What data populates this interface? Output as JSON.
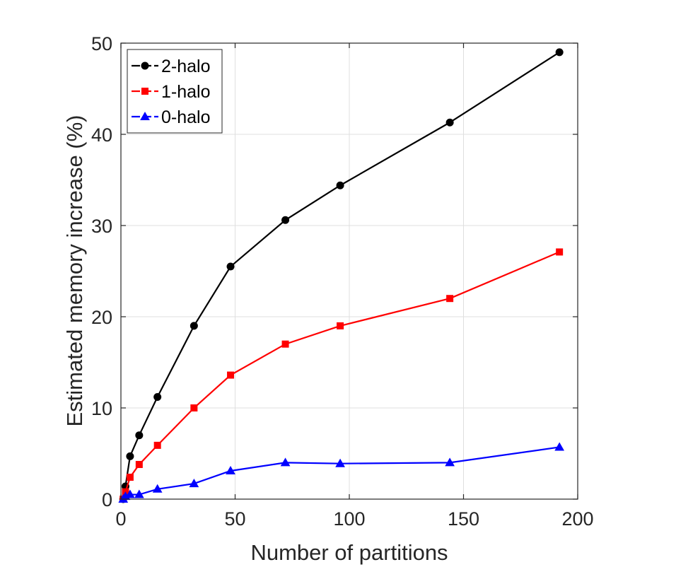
{
  "chart_data": {
    "type": "line",
    "xlabel": "Number of partitions",
    "ylabel": "Estimated memory increase (%)",
    "xlim": [
      0,
      200
    ],
    "ylim": [
      0,
      50
    ],
    "xticks": [
      "0",
      "50",
      "100",
      "150",
      "200"
    ],
    "yticks": [
      "0",
      "10",
      "20",
      "30",
      "40",
      "50"
    ],
    "grid": true,
    "legend_position": "top-left",
    "series": [
      {
        "name": "2-halo",
        "color": "#000000",
        "marker": "circle",
        "x": [
          1,
          2,
          4,
          8,
          16,
          32,
          48,
          72,
          96,
          144,
          192
        ],
        "y": [
          0,
          1.4,
          4.7,
          7.0,
          11.2,
          19.0,
          25.5,
          30.6,
          34.4,
          41.3,
          49.0
        ]
      },
      {
        "name": "1-halo",
        "color": "#ff0000",
        "marker": "square",
        "x": [
          1,
          2,
          4,
          8,
          16,
          32,
          48,
          72,
          96,
          144,
          192
        ],
        "y": [
          0,
          0.8,
          2.4,
          3.8,
          5.9,
          10.0,
          13.6,
          17.0,
          19.0,
          22.0,
          27.1
        ]
      },
      {
        "name": "0-halo",
        "color": "#0000ff",
        "marker": "triangle",
        "x": [
          1,
          2,
          4,
          8,
          16,
          32,
          48,
          72,
          96,
          144,
          192
        ],
        "y": [
          0,
          0.3,
          0.5,
          0.5,
          1.1,
          1.7,
          3.1,
          4.0,
          3.9,
          4.0,
          5.7
        ]
      }
    ]
  }
}
